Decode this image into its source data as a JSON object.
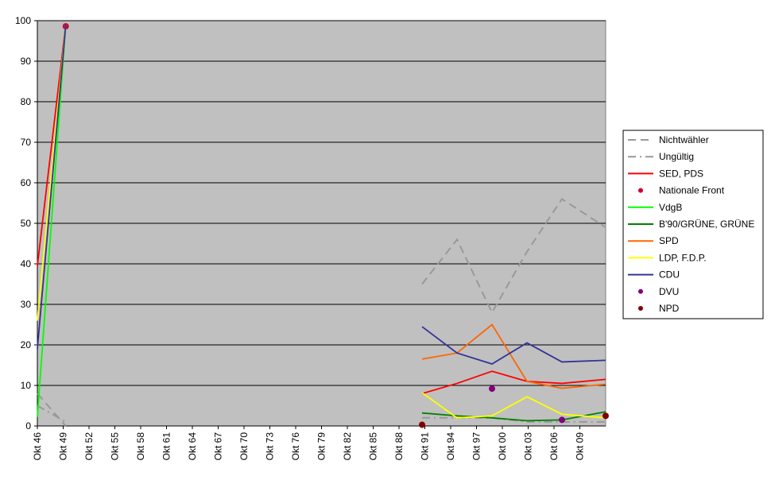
{
  "chart_data": {
    "type": "line",
    "title": "",
    "xlabel": "",
    "ylabel": "",
    "ylim": [
      0,
      100
    ],
    "y_ticks": [
      "0",
      "10",
      "20",
      "30",
      "40",
      "50",
      "60",
      "70",
      "80",
      "90",
      "100"
    ],
    "x_ticks": [
      "Okt 46",
      "Okt 49",
      "Okt 52",
      "Okt 55",
      "Okt 58",
      "Okt 61",
      "Okt 64",
      "Okt 67",
      "Okt 70",
      "Okt 73",
      "Okt 76",
      "Okt 79",
      "Okt 82",
      "Okt 85",
      "Okt 88",
      "Okt 91",
      "Okt 94",
      "Okt 97",
      "Okt 00",
      "Okt 03",
      "Okt 06",
      "Okt 09"
    ],
    "x_domain": [
      1946.75,
      2011.75
    ],
    "grid": "horizontal",
    "legend_position": "right",
    "plot_background": "#c0c0c0",
    "series": [
      {
        "name": "Nichtwähler",
        "color": "#999999",
        "style": "dashed",
        "points": [
          [
            1946.75,
            8
          ],
          [
            1950.0,
            0
          ],
          [
            1990.75,
            35
          ],
          [
            1994.75,
            46
          ],
          [
            1998.75,
            28
          ],
          [
            2002.75,
            43
          ],
          [
            2006.75,
            56
          ],
          [
            2011.75,
            49
          ]
        ]
      },
      {
        "name": "Ungültig",
        "color": "#999999",
        "style": "dashdot",
        "points": [
          [
            1946.75,
            5
          ],
          [
            1950.0,
            1
          ],
          [
            1990.75,
            2
          ],
          [
            1994.75,
            2
          ],
          [
            1998.75,
            2
          ],
          [
            2002.75,
            1
          ],
          [
            2006.75,
            1
          ],
          [
            2011.75,
            1
          ]
        ]
      },
      {
        "name": "SED, PDS",
        "color": "#ff0000",
        "style": "line",
        "points": [
          [
            1946.75,
            39.5
          ],
          [
            1950.0,
            99
          ],
          [
            1990.75,
            8
          ],
          [
            1994.75,
            10.5
          ],
          [
            1998.75,
            13.5
          ],
          [
            2002.75,
            11
          ],
          [
            2006.75,
            10.5
          ],
          [
            2011.75,
            11.5
          ]
        ]
      },
      {
        "name": "Nationale Front",
        "color": "#cc0033",
        "style": "marker",
        "points": [
          [
            1950.0,
            98.6
          ]
        ]
      },
      {
        "name": "VdgB",
        "color": "#00ff00",
        "style": "line",
        "points": [
          [
            1946.75,
            2.2
          ],
          [
            1950.0,
            99
          ]
        ]
      },
      {
        "name": "B'90/GRÜNE, GRÜNE",
        "color": "#008000",
        "style": "line",
        "points": [
          [
            1990.75,
            3.2
          ],
          [
            1994.75,
            2.5
          ],
          [
            1998.75,
            2
          ],
          [
            2002.75,
            1.3
          ],
          [
            2006.75,
            1.5
          ],
          [
            2011.75,
            3.5
          ]
        ]
      },
      {
        "name": "SPD",
        "color": "#ff6600",
        "style": "line",
        "points": [
          [
            1990.75,
            16.5
          ],
          [
            1994.75,
            18
          ],
          [
            1998.75,
            25
          ],
          [
            2002.75,
            11
          ],
          [
            2006.75,
            9.3
          ],
          [
            2011.75,
            10.3
          ]
        ]
      },
      {
        "name": "LDP, F.D.P.",
        "color": "#ffff00",
        "style": "line",
        "points": [
          [
            1946.75,
            26
          ],
          [
            1950.0,
            99
          ],
          [
            1990.75,
            8.2
          ],
          [
            1994.75,
            2
          ],
          [
            1998.75,
            2.5
          ],
          [
            2002.75,
            7.2
          ],
          [
            2006.75,
            2.9
          ],
          [
            2011.75,
            2
          ]
        ]
      },
      {
        "name": "CDU",
        "color": "#333399",
        "style": "line",
        "points": [
          [
            1946.75,
            19
          ],
          [
            1950.0,
            99
          ],
          [
            1990.75,
            24.5
          ],
          [
            1994.75,
            18
          ],
          [
            1998.75,
            15.3
          ],
          [
            2002.75,
            20.5
          ],
          [
            2006.75,
            15.8
          ],
          [
            2011.75,
            16.2
          ]
        ]
      },
      {
        "name": "DVU",
        "color": "#800080",
        "style": "marker",
        "points": [
          [
            1998.75,
            9.2
          ],
          [
            2006.75,
            1.5
          ]
        ]
      },
      {
        "name": "NPD",
        "color": "#800000",
        "style": "marker",
        "points": [
          [
            1990.75,
            0.3
          ],
          [
            2011.75,
            2.5
          ]
        ]
      }
    ]
  }
}
